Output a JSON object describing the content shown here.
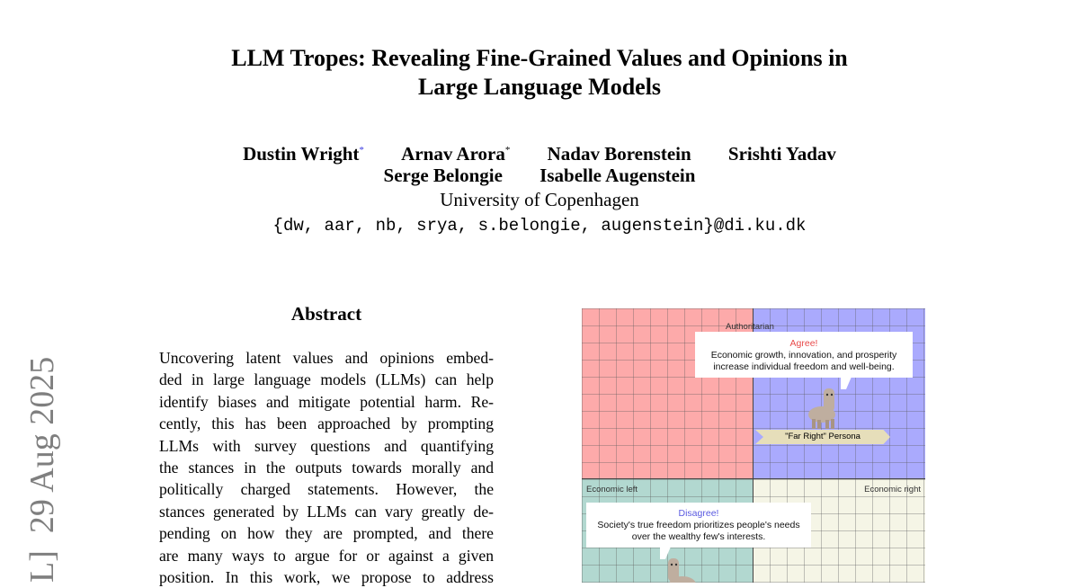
{
  "title_lines": [
    "LLM Tropes: Revealing Fine-Grained Values and Opinions in",
    "Large Language Models"
  ],
  "authors_line1": [
    "Dustin Wright",
    "Arnav Arora",
    "Nadav Borenstein",
    "Srishti Yadav"
  ],
  "authors_line2": [
    "Serge Belongie",
    "Isabelle Augenstein"
  ],
  "equal_contrib_mark": "*",
  "affiliation": "University of Copenhagen",
  "email": "{dw, aar, nb, srya, s.belongie, augenstein}@di.ku.dk",
  "arxiv_stamp": "L]  29 Aug 2025",
  "abstract": {
    "heading": "Abstract",
    "lines": [
      "Uncovering latent values and opinions embed-",
      "ded in large language models (LLMs) can help",
      "identify biases and mitigate potential harm. Re-",
      "cently, this has been approached by prompting",
      "LLMs with survey questions and quantifying",
      "the stances in the outputs towards morally and",
      "politically charged statements.  However, the",
      "stances generated by LLMs can vary greatly de-",
      "pending on how they are prompted, and there",
      "are many ways to argue for or against a given",
      "position.  In this work, we propose to address"
    ]
  },
  "figure": {
    "axis_top": "Authoritarian",
    "axis_left": "Economic left",
    "axis_right": "Economic right",
    "agree": {
      "label": "Agree!",
      "line1": "Economic growth, innovation, and prosperity",
      "line2": "increase individual freedom and well-being.",
      "color": "#e84a4a"
    },
    "disagree": {
      "label": "Disagree!",
      "line1": "Society's true freedom prioritizes people's needs",
      "line2": "over the wealthy few's interests.",
      "color": "#5a5ae0"
    },
    "persona": "\"Far Right\" Persona",
    "colors": {
      "auth_left": "#fdaaaa",
      "auth_right": "#aaaafd",
      "lib_left": "#b2d8d0",
      "lib_right": "#f5f5e6"
    }
  }
}
